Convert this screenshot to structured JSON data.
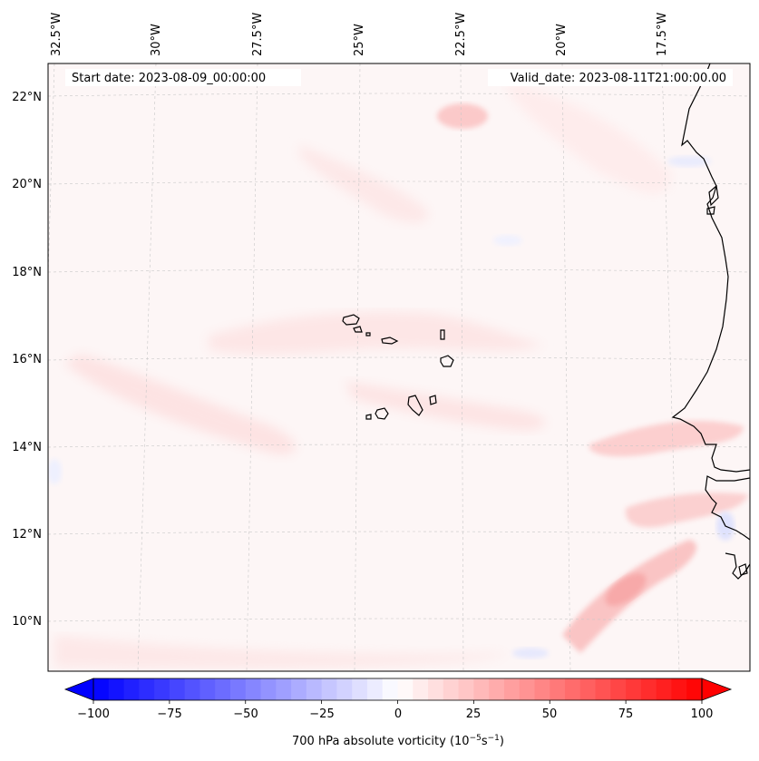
{
  "header": {
    "start_date": "Start date: 2023-08-09_00:00:00",
    "valid_date": "Valid_date: 2023-08-11T21:00:00.00"
  },
  "axes": {
    "longitude_labels": [
      "32.5°W",
      "30°W",
      "27.5°W",
      "25°W",
      "22.5°W",
      "20°W",
      "17.5°W"
    ],
    "latitude_labels": [
      "22°N",
      "20°N",
      "18°N",
      "16°N",
      "14°N",
      "12°N",
      "10°N"
    ]
  },
  "colorbar": {
    "tick_labels": [
      "−100",
      "−75",
      "−50",
      "−25",
      "0",
      "25",
      "50",
      "75",
      "100"
    ],
    "label_main": "700 hPa absolute vorticity (10",
    "label_exp1": "−5",
    "label_mid": "s",
    "label_exp2": "−1",
    "label_end": ")"
  },
  "colors": {
    "negative_end": "#0000ff",
    "positive_end": "#ff0000",
    "background_field": "#fdf5f5",
    "coastline": "#000000"
  }
}
